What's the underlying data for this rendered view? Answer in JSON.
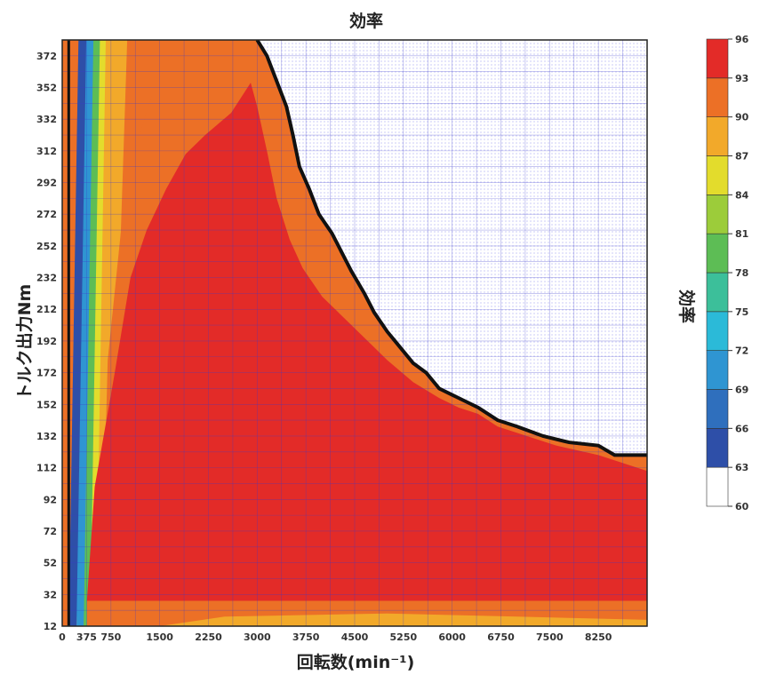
{
  "chart_data": {
    "type": "heatmap",
    "title": "効率",
    "xlabel": "回転数(min⁻¹)",
    "ylabel": "トルク出力Nm",
    "colorbar_label": "効率",
    "xlim": [
      0,
      9000
    ],
    "ylim": [
      12,
      382
    ],
    "x_ticks": [
      0,
      375,
      750,
      1500,
      2250,
      3000,
      3750,
      4500,
      5250,
      6000,
      6750,
      7500,
      8250
    ],
    "y_ticks": [
      12,
      32,
      52,
      72,
      92,
      112,
      132,
      152,
      172,
      192,
      212,
      232,
      252,
      272,
      292,
      312,
      332,
      352,
      372
    ],
    "colorbar": {
      "ticks": [
        60,
        63,
        66,
        69,
        72,
        75,
        78,
        81,
        84,
        87,
        90,
        93,
        96
      ],
      "colors": [
        "#ffffff",
        "#2e4fa8",
        "#2f6fbd",
        "#2f95d2",
        "#2bbad8",
        "#3cbf9a",
        "#5dbd55",
        "#9ccc3a",
        "#e3dc2c",
        "#f2a92a",
        "#ec7026",
        "#e32b28"
      ]
    },
    "grid": true,
    "max_torque_boundary": [
      [
        3000,
        382
      ],
      [
        3150,
        372
      ],
      [
        3300,
        356
      ],
      [
        3450,
        340
      ],
      [
        3550,
        322
      ],
      [
        3650,
        302
      ],
      [
        3800,
        288
      ],
      [
        3950,
        272
      ],
      [
        4150,
        260
      ],
      [
        4300,
        248
      ],
      [
        4450,
        236
      ],
      [
        4650,
        222
      ],
      [
        4800,
        210
      ],
      [
        5000,
        198
      ],
      [
        5200,
        188
      ],
      [
        5400,
        178
      ],
      [
        5600,
        172
      ],
      [
        5800,
        162
      ],
      [
        6100,
        156
      ],
      [
        6400,
        150
      ],
      [
        6700,
        142
      ],
      [
        7000,
        138
      ],
      [
        7400,
        132
      ],
      [
        7800,
        128
      ],
      [
        8250,
        126
      ],
      [
        8500,
        120
      ],
      [
        9000,
        120
      ]
    ],
    "efficiency_zones": [
      {
        "level": 93,
        "points": [
          [
            650,
            30
          ],
          [
            650,
            230
          ],
          [
            900,
            290
          ],
          [
            1150,
            340
          ],
          [
            1500,
            372
          ],
          [
            1900,
            382
          ],
          [
            3000,
            382
          ],
          [
            3000,
            382
          ],
          [
            2800,
            382
          ]
        ]
      },
      {
        "level": 96,
        "points": [
          [
            380,
            28
          ],
          [
            9000,
            28
          ],
          [
            9000,
            110
          ],
          [
            8250,
            120
          ],
          [
            7600,
            126
          ],
          [
            7000,
            134
          ],
          [
            6700,
            138
          ],
          [
            6400,
            146
          ],
          [
            6100,
            150
          ],
          [
            5800,
            156
          ],
          [
            5400,
            166
          ],
          [
            5000,
            180
          ],
          [
            4700,
            192
          ],
          [
            4400,
            204
          ],
          [
            4000,
            220
          ],
          [
            3700,
            238
          ],
          [
            3500,
            256
          ],
          [
            3300,
            282
          ],
          [
            3150,
            312
          ],
          [
            3000,
            340
          ],
          [
            2900,
            355
          ],
          [
            2600,
            336
          ],
          [
            2200,
            322
          ],
          [
            1900,
            310
          ],
          [
            1600,
            288
          ],
          [
            1300,
            262
          ],
          [
            1050,
            232
          ],
          [
            800,
            170
          ],
          [
            500,
            100
          ]
        ]
      }
    ]
  }
}
